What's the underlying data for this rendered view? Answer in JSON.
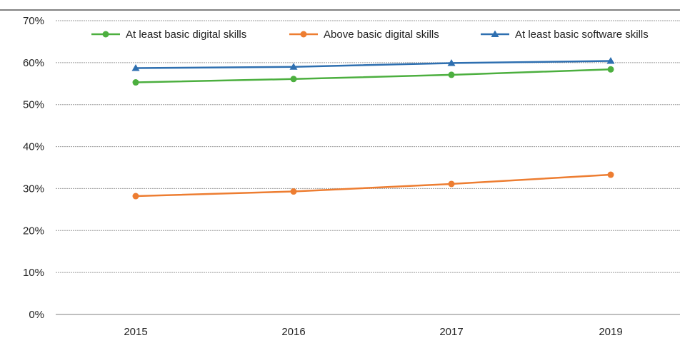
{
  "chart_data": {
    "type": "line",
    "x": [
      "2015",
      "2016",
      "2017",
      "2019"
    ],
    "ylim": [
      0,
      0.7
    ],
    "yticks": [
      "0%",
      "10%",
      "20%",
      "30%",
      "40%",
      "50%",
      "60%",
      "70%"
    ],
    "grid": true,
    "legend_position": "top",
    "series": [
      {
        "name": "At least basic digital skills",
        "color": "#4caf3f",
        "marker": "circle",
        "values": [
          0.553,
          0.561,
          0.571,
          0.584
        ]
      },
      {
        "name": "Above basic digital skills",
        "color": "#ed7d31",
        "marker": "circle",
        "values": [
          0.282,
          0.293,
          0.311,
          0.333
        ]
      },
      {
        "name": "At least basic software skills",
        "color": "#2e6fb0",
        "marker": "triangle",
        "values": [
          0.587,
          0.59,
          0.599,
          0.604
        ]
      }
    ]
  }
}
